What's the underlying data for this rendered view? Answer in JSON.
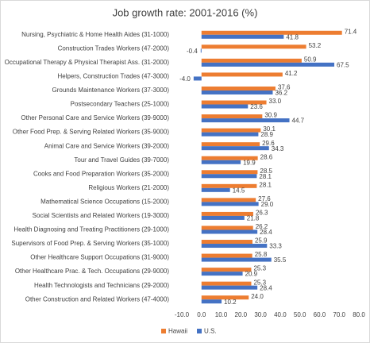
{
  "chart_data": {
    "type": "hbar",
    "title": "Job growth rate: 2001-2016 (%)",
    "categories": [
      "Nursing, Psychiatric & Home Health Aides (31-1000)",
      "Construction Trades Workers (47-2000)",
      "Occupational Therapy & Physical Therapist Ass. (31-2000)",
      "Helpers, Construction Trades (47-3000)",
      "Grounds Maintenance Workers (37-3000)",
      "Postsecondary Teachers (25-1000)",
      "Other Personal Care and Service Workers (39-9000)",
      "Other Food Prep. & Serving Related Workers (35-9000)",
      "Animal Care and Service Workers (39-2000)",
      "Tour and Travel Guides (39-7000)",
      "Cooks and Food Preparation Workers (35-2000)",
      "Religious Workers (21-2000)",
      "Mathematical Science Occupations (15-2000)",
      "Social Scientists and Related Workers (19-3000)",
      "Health Diagnosing and Treating Practitioners (29-1000)",
      "Supervisors of Food Prep. & Serving Workers (35-1000)",
      "Other Healthcare Support Occupations (31-9000)",
      "Other Healthcare Prac. & Tech. Occupations (29-9000)",
      "Health Technologists and Technicians (29-2000)",
      "Other Construction and Related Workers (47-4000)"
    ],
    "series": [
      {
        "name": "Hawaii",
        "color": "#ed7d31",
        "values": [
          71.4,
          53.2,
          50.9,
          41.2,
          37.6,
          33.0,
          30.9,
          30.1,
          29.6,
          28.6,
          28.5,
          28.1,
          27.6,
          26.3,
          26.2,
          25.9,
          25.8,
          25.3,
          25.3,
          24.0
        ],
        "value_labels": [
          "71.4",
          "53.2",
          "50.9",
          "41.2",
          "37.6",
          "33.0",
          "30.9",
          "30.1",
          "29.6",
          "28.6",
          "28.5",
          "28.1",
          "27.6",
          "26.3",
          "26.2",
          "25.9",
          "25.8",
          "25.3",
          "25.3",
          "24.0"
        ]
      },
      {
        "name": "U.S.",
        "color": "#4472c4",
        "values": [
          41.8,
          -0.4,
          67.5,
          -4.0,
          36.2,
          23.6,
          44.7,
          28.9,
          34.3,
          19.9,
          28.1,
          14.5,
          29.0,
          21.8,
          28.4,
          33.3,
          35.5,
          20.9,
          28.4,
          10.2
        ],
        "value_labels": [
          "41.8",
          "-0.4",
          "67.5",
          "-4.0",
          "36.2",
          "23.6",
          "44.7",
          "28.9",
          "34.3",
          "19.9",
          "28.1",
          "14.5",
          "29.0",
          "21.8",
          "28.4",
          "33.3",
          "35.5",
          "20.9",
          "28.4",
          "10.2"
        ]
      }
    ],
    "xlim": [
      -10,
      80
    ],
    "xticks": [
      {
        "value": -10,
        "label": "-10.0"
      },
      {
        "value": 0,
        "label": "0.0"
      },
      {
        "value": 10,
        "label": "10.0"
      },
      {
        "value": 20,
        "label": "20.0"
      },
      {
        "value": 30,
        "label": "30.0"
      },
      {
        "value": 40,
        "label": "40.0"
      },
      {
        "value": 50,
        "label": "50.0"
      },
      {
        "value": 60,
        "label": "60.0"
      },
      {
        "value": 70,
        "label": "70.0"
      },
      {
        "value": 80,
        "label": "80.0"
      }
    ],
    "legend": "bottom"
  }
}
